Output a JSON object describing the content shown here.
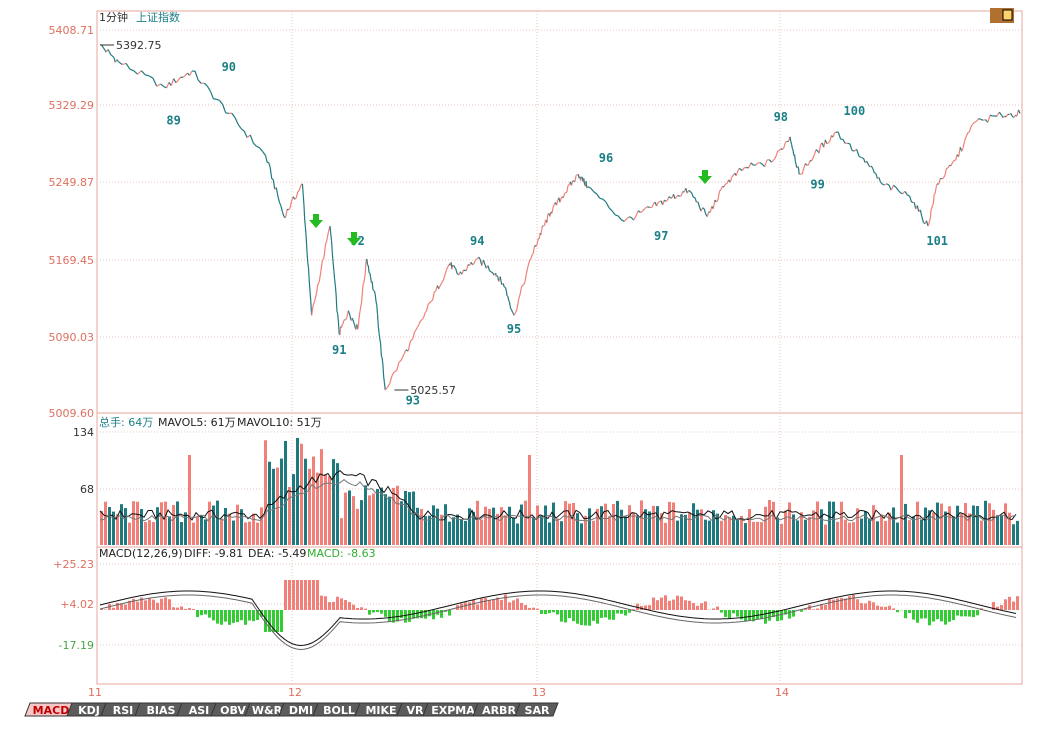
{
  "header": {
    "period": "1分钟",
    "instrument": "上证指数"
  },
  "price_axis": [
    "5408.71",
    "5329.29",
    "5249.87",
    "5169.45",
    "5090.03",
    "5009.60"
  ],
  "volume_axis": [
    "134",
    "68"
  ],
  "macd_axis": [
    "+25.23",
    "+4.02",
    "-17.19"
  ],
  "time_axis": [
    "11",
    "12",
    "13",
    "14"
  ],
  "volume_legend": {
    "total_label": "总手: 64万",
    "mavol5": "MAVOL5: 61万",
    "mavol10": "MAVOL10: 51万"
  },
  "macd_legend": {
    "params": "MACD(12,26,9)",
    "diff": "DIFF: -9.81",
    "dea": "DEA: -5.49",
    "macd": "MACD: -8.63"
  },
  "tabs": [
    "MACD",
    "KDJ",
    "RSI",
    "BIAS",
    "ASI",
    "OBV",
    "W&R",
    "DMI",
    "BOLL",
    "MIKE",
    "VR",
    "EXPMA",
    "ARBR",
    "SAR"
  ],
  "active_tab": "MACD",
  "colors": {
    "up": "#f08078",
    "down": "#1f7a80",
    "macd_neg": "#33cc33",
    "grid": "#e6c9c0",
    "axis_text": "#e06f5f",
    "annotation": "#1a7f86",
    "arrow": "#22bb22"
  },
  "chart_data": [
    {
      "type": "line",
      "title": "1分钟 上证指数",
      "ylim": [
        5009.6,
        5408.71
      ],
      "x": [
        0,
        0.02,
        0.07,
        0.1,
        0.14,
        0.18,
        0.2,
        0.22,
        0.23,
        0.25,
        0.26,
        0.27,
        0.28,
        0.29,
        0.3,
        0.31,
        0.34,
        0.36,
        0.38,
        0.39,
        0.41,
        0.43,
        0.44,
        0.45,
        0.47,
        0.48,
        0.49,
        0.505,
        0.52,
        0.53,
        0.57,
        0.6,
        0.62,
        0.64,
        0.66,
        0.68,
        0.7,
        0.73,
        0.75,
        0.76,
        0.78,
        0.8,
        0.83,
        0.85,
        0.88,
        0.9,
        0.91,
        0.93,
        0.95,
        0.98,
        1.0
      ],
      "y": [
        5392.75,
        5375,
        5348,
        5365,
        5320,
        5275,
        5210,
        5245,
        5105,
        5200,
        5085,
        5110,
        5090,
        5165,
        5120,
        5025.57,
        5080,
        5120,
        5160,
        5148,
        5165,
        5150,
        5135,
        5105,
        5170,
        5195,
        5215,
        5235,
        5255,
        5242,
        5205,
        5220,
        5230,
        5238,
        5210,
        5245,
        5262,
        5268,
        5295,
        5255,
        5280,
        5300,
        5272,
        5245,
        5232,
        5200,
        5245,
        5270,
        5310,
        5318,
        5320
      ],
      "annotations": [
        {
          "label": "89",
          "x": 0.08,
          "y": 5308
        },
        {
          "label": "90",
          "x": 0.14,
          "y": 5365
        },
        {
          "label": "91",
          "x": 0.26,
          "y": 5064
        },
        {
          "label": "92",
          "x": 0.28,
          "y": 5180
        },
        {
          "label": "93",
          "x": 0.34,
          "y": 5010
        },
        {
          "label": "94",
          "x": 0.41,
          "y": 5180
        },
        {
          "label": "95",
          "x": 0.45,
          "y": 5086
        },
        {
          "label": "96",
          "x": 0.55,
          "y": 5268
        },
        {
          "label": "97",
          "x": 0.61,
          "y": 5185
        },
        {
          "label": "98",
          "x": 0.74,
          "y": 5312
        },
        {
          "label": "99",
          "x": 0.78,
          "y": 5240
        },
        {
          "label": "100",
          "x": 0.82,
          "y": 5318
        },
        {
          "label": "101",
          "x": 0.91,
          "y": 5180
        }
      ],
      "markers": [
        {
          "type": "high",
          "label": "5392.75",
          "x": 0,
          "y": 5392.75
        },
        {
          "type": "low",
          "label": "5025.57",
          "x": 0.32,
          "y": 5025.57
        }
      ]
    },
    {
      "type": "bar",
      "title": "总手",
      "ylim": [
        0,
        134
      ],
      "series": [
        {
          "name": "总手",
          "note": "volume bars alternating up/down colors"
        },
        {
          "name": "MAVOL5"
        },
        {
          "name": "MAVOL10"
        }
      ]
    },
    {
      "type": "bar",
      "title": "MACD(12,26,9)",
      "ylim": [
        -35,
        25.23
      ],
      "series": [
        {
          "name": "DIFF"
        },
        {
          "name": "DEA"
        },
        {
          "name": "MACD"
        }
      ]
    }
  ]
}
